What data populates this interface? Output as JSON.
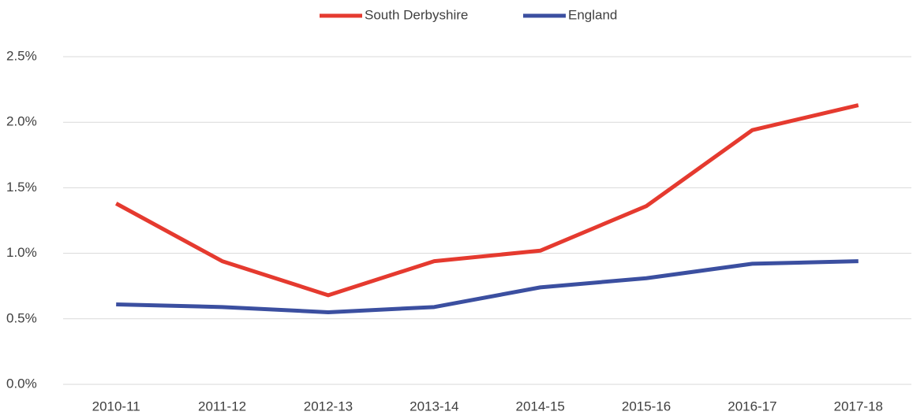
{
  "chart_data": {
    "type": "line",
    "categories": [
      "2010-11",
      "2011-12",
      "2012-13",
      "2013-14",
      "2014-15",
      "2015-16",
      "2016-17",
      "2017-18"
    ],
    "series": [
      {
        "name": "South Derbyshire",
        "color": "#e53a2f",
        "values": [
          1.38,
          0.94,
          0.68,
          0.94,
          1.02,
          1.36,
          1.94,
          2.13
        ]
      },
      {
        "name": "England",
        "color": "#3b4fa0",
        "values": [
          0.61,
          0.59,
          0.55,
          0.59,
          0.74,
          0.81,
          0.92,
          0.94
        ]
      }
    ],
    "ylim": [
      0,
      2.5
    ],
    "yticks": [
      {
        "value": 0,
        "label": "0.0%"
      },
      {
        "value": 0.5,
        "label": "0.5%"
      },
      {
        "value": 1,
        "label": "1.0%"
      },
      {
        "value": 1.5,
        "label": "1.5%"
      },
      {
        "value": 2,
        "label": "2.0%"
      },
      {
        "value": 2.5,
        "label": "2.5%"
      }
    ],
    "grid": true,
    "legend": "top"
  }
}
